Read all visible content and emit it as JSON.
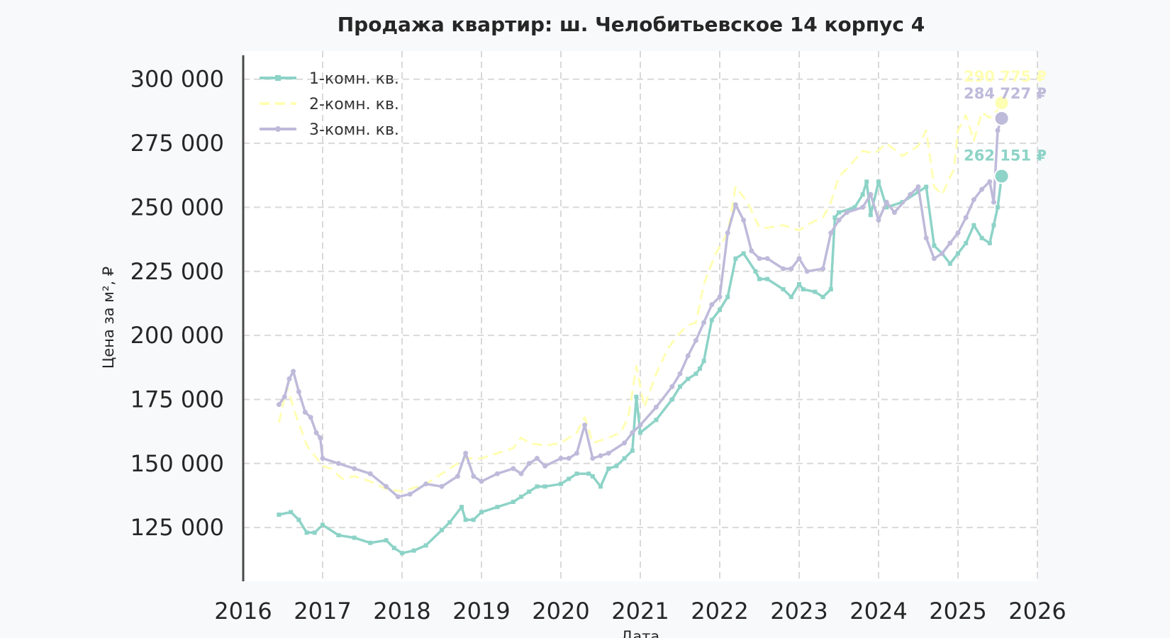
{
  "chart_data": {
    "type": "line",
    "title": "Продажа квартир: ш. Челобитьевское 14 корпус 4",
    "xlabel": "Дата",
    "ylabel": "Цена за м², ₽",
    "xlim": [
      2016,
      2026
    ],
    "ylim": [
      104000,
      311000
    ],
    "x_ticks": [
      "2016",
      "2017",
      "2018",
      "2019",
      "2020",
      "2021",
      "2022",
      "2023",
      "2024",
      "2025",
      "2026"
    ],
    "y_ticks": [
      "125 000",
      "150 000",
      "175 000",
      "200 000",
      "225 000",
      "250 000",
      "275 000",
      "300 000"
    ],
    "grid": true,
    "legend_position": "top-left",
    "series": [
      {
        "name": "1-комн. кв.",
        "color": "#8dd3c7",
        "style": "solid",
        "marker": "square",
        "end_label": "262 151 ₽",
        "x": [
          2016.45,
          2016.6,
          2016.7,
          2016.8,
          2016.9,
          2017.0,
          2017.2,
          2017.4,
          2017.6,
          2017.8,
          2017.9,
          2018.0,
          2018.15,
          2018.3,
          2018.5,
          2018.6,
          2018.75,
          2018.8,
          2018.9,
          2019.0,
          2019.2,
          2019.4,
          2019.5,
          2019.6,
          2019.7,
          2019.8,
          2020.0,
          2020.1,
          2020.2,
          2020.35,
          2020.4,
          2020.5,
          2020.6,
          2020.7,
          2020.8,
          2020.9,
          2020.95,
          2021.0,
          2021.2,
          2021.4,
          2021.5,
          2021.6,
          2021.7,
          2021.75,
          2021.8,
          2021.9,
          2022.0,
          2022.1,
          2022.2,
          2022.3,
          2022.45,
          2022.5,
          2022.6,
          2022.8,
          2022.9,
          2023.0,
          2023.05,
          2023.2,
          2023.3,
          2023.4,
          2023.45,
          2023.5,
          2023.7,
          2023.8,
          2023.85,
          2023.9,
          2024.0,
          2024.1,
          2024.3,
          2024.5,
          2024.6,
          2024.7,
          2024.8,
          2024.9,
          2025.0,
          2025.1,
          2025.2,
          2025.3,
          2025.4,
          2025.45,
          2025.5,
          2025.55
        ],
        "y": [
          130000,
          131000,
          128000,
          123000,
          123000,
          126000,
          122000,
          121000,
          119000,
          120000,
          117000,
          115000,
          116000,
          118000,
          124000,
          127000,
          133000,
          128000,
          128000,
          131000,
          133000,
          135000,
          137000,
          139000,
          141000,
          141000,
          142000,
          144000,
          146000,
          146000,
          145000,
          141000,
          148000,
          149000,
          152000,
          155000,
          176000,
          162000,
          167000,
          175000,
          180000,
          183000,
          185000,
          187000,
          190000,
          206000,
          210000,
          215000,
          230000,
          232000,
          225000,
          222000,
          222000,
          218000,
          215000,
          220000,
          218000,
          217000,
          215000,
          218000,
          246000,
          248000,
          250000,
          255000,
          260000,
          247000,
          260000,
          250000,
          252000,
          256000,
          258000,
          235000,
          232000,
          228000,
          232000,
          236000,
          243000,
          238000,
          236000,
          243000,
          250000,
          262151
        ]
      },
      {
        "name": "2-комн. кв.",
        "color": "#ffffb3",
        "style": "dashed",
        "marker": "none",
        "end_label": "290 775 ₽",
        "x": [
          2016.45,
          2016.55,
          2016.65,
          2016.8,
          2016.9,
          2017.0,
          2017.1,
          2017.25,
          2017.4,
          2017.6,
          2017.8,
          2018.0,
          2018.3,
          2018.6,
          2018.8,
          2019.0,
          2019.2,
          2019.4,
          2019.5,
          2019.6,
          2019.8,
          2020.0,
          2020.2,
          2020.3,
          2020.4,
          2020.6,
          2020.75,
          2020.85,
          2020.95,
          2021.05,
          2021.2,
          2021.35,
          2021.5,
          2021.6,
          2021.7,
          2021.8,
          2021.95,
          2022.1,
          2022.2,
          2022.35,
          2022.5,
          2022.6,
          2022.8,
          2023.0,
          2023.15,
          2023.3,
          2023.4,
          2023.5,
          2023.6,
          2023.8,
          2023.95,
          2024.1,
          2024.3,
          2024.5,
          2024.6,
          2024.7,
          2024.8,
          2024.95,
          2025.0,
          2025.1,
          2025.2,
          2025.3,
          2025.4,
          2025.5,
          2025.55
        ],
        "y": [
          166000,
          180000,
          170000,
          157000,
          153000,
          149000,
          148000,
          144000,
          145000,
          143000,
          140000,
          139000,
          142000,
          148000,
          152000,
          152000,
          154000,
          156000,
          160000,
          158000,
          157000,
          158000,
          162000,
          168000,
          158000,
          160000,
          162000,
          168000,
          188000,
          172000,
          185000,
          195000,
          201000,
          204000,
          205000,
          220000,
          232000,
          240000,
          258000,
          252000,
          242000,
          242000,
          243000,
          241000,
          244000,
          246000,
          252000,
          262000,
          265000,
          272000,
          271000,
          275000,
          270000,
          274000,
          280000,
          258000,
          255000,
          265000,
          280000,
          286000,
          276000,
          287000,
          285000,
          288000,
          290775
        ]
      },
      {
        "name": "3-комн. кв.",
        "color": "#bebada",
        "style": "solid",
        "marker": "circle",
        "end_label": "284 727 ₽",
        "x": [
          2016.45,
          2016.52,
          2016.58,
          2016.63,
          2016.7,
          2016.78,
          2016.85,
          2016.92,
          2016.97,
          2017.0,
          2017.2,
          2017.4,
          2017.6,
          2017.8,
          2017.95,
          2018.1,
          2018.3,
          2018.5,
          2018.7,
          2018.8,
          2018.9,
          2019.0,
          2019.2,
          2019.4,
          2019.5,
          2019.6,
          2019.7,
          2019.8,
          2020.0,
          2020.1,
          2020.2,
          2020.3,
          2020.4,
          2020.5,
          2020.6,
          2020.8,
          2020.9,
          2021.0,
          2021.2,
          2021.4,
          2021.5,
          2021.6,
          2021.7,
          2021.8,
          2021.9,
          2022.0,
          2022.1,
          2022.2,
          2022.3,
          2022.4,
          2022.5,
          2022.6,
          2022.8,
          2022.9,
          2023.0,
          2023.1,
          2023.3,
          2023.4,
          2023.5,
          2023.6,
          2023.8,
          2023.9,
          2024.0,
          2024.1,
          2024.2,
          2024.4,
          2024.5,
          2024.6,
          2024.7,
          2024.8,
          2024.9,
          2025.0,
          2025.1,
          2025.2,
          2025.3,
          2025.4,
          2025.45,
          2025.5,
          2025.55
        ],
        "y": [
          173000,
          176000,
          183000,
          186000,
          178000,
          170000,
          168000,
          162000,
          160000,
          152000,
          150000,
          148000,
          146000,
          141000,
          137000,
          138000,
          142000,
          141000,
          145000,
          154000,
          145000,
          143000,
          146000,
          148000,
          146000,
          150000,
          152000,
          149000,
          152000,
          152000,
          154000,
          165000,
          152000,
          153000,
          154000,
          158000,
          162000,
          165000,
          172000,
          180000,
          185000,
          192000,
          198000,
          205000,
          212000,
          215000,
          240000,
          251000,
          245000,
          233000,
          230000,
          230000,
          226000,
          226000,
          230000,
          225000,
          226000,
          240000,
          245000,
          248000,
          250000,
          255000,
          245000,
          252000,
          248000,
          255000,
          258000,
          238000,
          230000,
          232000,
          236000,
          240000,
          246000,
          253000,
          257000,
          260000,
          252000,
          280000,
          284727
        ]
      }
    ]
  }
}
